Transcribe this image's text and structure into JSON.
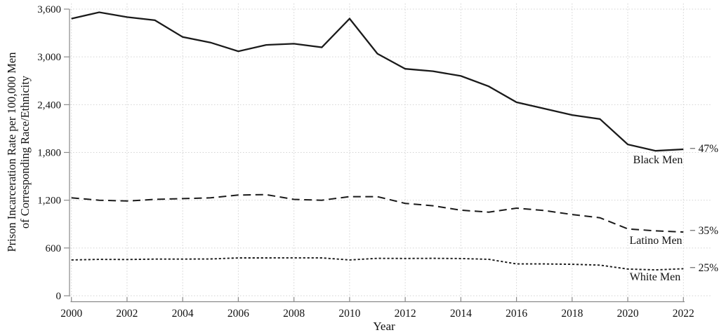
{
  "chart_data": {
    "type": "line",
    "title": "",
    "xlabel": "Year",
    "ylabel": "Prison Incarceration Rate per 100,000 Men of Corresponding Race/Ethnicity",
    "ylabel_line1": "Prison Incarceration Rate per 100,000 Men",
    "ylabel_line2": "of Corresponding Race/Ethnicity",
    "xlim": [
      2000,
      2022
    ],
    "ylim": [
      0,
      3600
    ],
    "grid": "dotted-both-axes",
    "legend_position": "end-of-line-labels",
    "line_color": "#1a1a1a",
    "grid_color": "#d2d2d2",
    "axis_color": "#8a8a8a",
    "x": [
      2000,
      2001,
      2002,
      2003,
      2004,
      2005,
      2006,
      2007,
      2008,
      2009,
      2010,
      2011,
      2012,
      2013,
      2014,
      2015,
      2016,
      2017,
      2018,
      2019,
      2020,
      2021,
      2022
    ],
    "x_ticks": [
      2000,
      2002,
      2004,
      2006,
      2008,
      2010,
      2012,
      2014,
      2016,
      2018,
      2020,
      2022
    ],
    "x_tick_labels": [
      "2000",
      "2002",
      "2004",
      "2006",
      "2008",
      "2010",
      "2012",
      "2014",
      "2016",
      "2018",
      "2020",
      "2022"
    ],
    "y_ticks": [
      {
        "value": 0,
        "label": "0"
      },
      {
        "value": 600,
        "label": "600"
      },
      {
        "value": 1200,
        "label": "1,200"
      },
      {
        "value": 1800,
        "label": "1,800"
      },
      {
        "value": 2400,
        "label": "2,400"
      },
      {
        "value": 3000,
        "label": "3,000"
      },
      {
        "value": 3600,
        "label": "3,600"
      }
    ],
    "series": [
      {
        "name": "Black Men",
        "label": "Black Men",
        "change_label": "− 47%",
        "line_style": "solid",
        "values": [
          3480,
          3560,
          3500,
          3460,
          3250,
          3180,
          3070,
          3150,
          3165,
          3120,
          3480,
          3040,
          2850,
          2820,
          2760,
          2630,
          2430,
          2350,
          2270,
          2220,
          1900,
          1820,
          1840
        ]
      },
      {
        "name": "Latino Men",
        "label": "Latino Men",
        "change_label": "− 35%",
        "line_style": "dashed",
        "values": [
          1230,
          1200,
          1190,
          1210,
          1220,
          1230,
          1265,
          1270,
          1210,
          1200,
          1245,
          1245,
          1160,
          1130,
          1075,
          1050,
          1100,
          1070,
          1020,
          980,
          840,
          815,
          800
        ]
      },
      {
        "name": "White Men",
        "label": "White Men",
        "change_label": "− 25%",
        "line_style": "dotted",
        "values": [
          450,
          457,
          455,
          460,
          460,
          462,
          475,
          475,
          476,
          475,
          450,
          470,
          468,
          470,
          467,
          458,
          400,
          400,
          395,
          385,
          335,
          325,
          340
        ]
      }
    ]
  }
}
